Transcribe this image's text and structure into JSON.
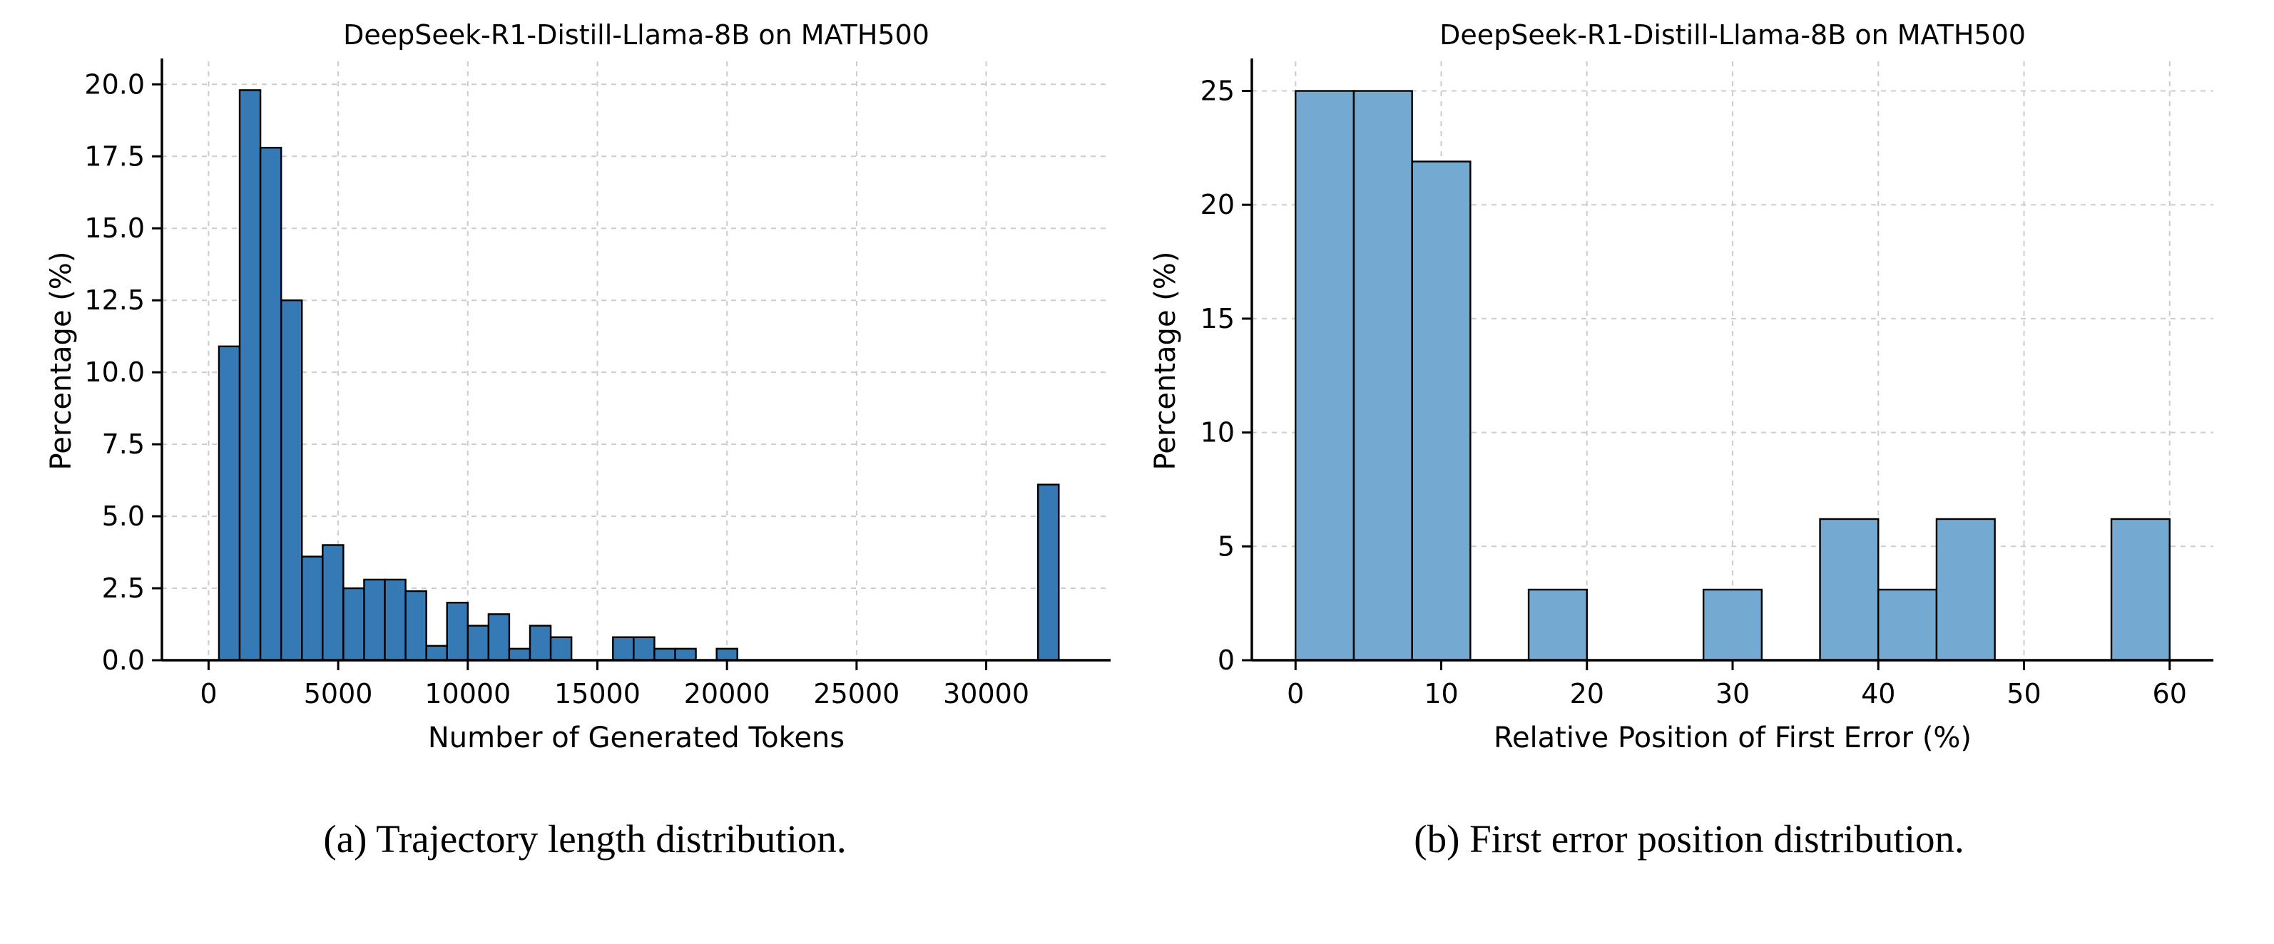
{
  "page": {
    "background": "#ffffff"
  },
  "captions": {
    "a": "(a) Trajectory length distribution.",
    "b": "(b) First error position distribution."
  },
  "chart_data": [
    {
      "id": "chart-a",
      "type": "bar",
      "title": "DeepSeek-R1-Distill-Llama-8B on MATH500",
      "xlabel": "Number of Generated Tokens",
      "ylabel": "Percentage (%)",
      "bar_color": "#3579b5",
      "edge_color": "#000000",
      "grid_color": "#cccccc",
      "grid": true,
      "legend": "none",
      "xlim": [
        -1800,
        34800
      ],
      "ylim": [
        0,
        20.8
      ],
      "xticks": [
        0,
        5000,
        10000,
        15000,
        20000,
        25000,
        30000
      ],
      "xtick_labels": [
        "0",
        "5000",
        "10000",
        "15000",
        "20000",
        "25000",
        "30000"
      ],
      "yticks": [
        0,
        2.5,
        5,
        7.5,
        10,
        12.5,
        15,
        17.5,
        20
      ],
      "ytick_labels": [
        "0.0",
        "2.5",
        "5.0",
        "7.5",
        "10.0",
        "12.5",
        "15.0",
        "17.5",
        "20.0"
      ],
      "bin_width": 800,
      "bars": [
        {
          "x": 400,
          "h": 10.9
        },
        {
          "x": 1200,
          "h": 19.8
        },
        {
          "x": 2000,
          "h": 17.8
        },
        {
          "x": 2800,
          "h": 12.5
        },
        {
          "x": 3600,
          "h": 3.6
        },
        {
          "x": 4400,
          "h": 4.0
        },
        {
          "x": 5200,
          "h": 2.5
        },
        {
          "x": 6000,
          "h": 2.8
        },
        {
          "x": 6800,
          "h": 2.8
        },
        {
          "x": 7600,
          "h": 2.4
        },
        {
          "x": 8400,
          "h": 0.5
        },
        {
          "x": 9200,
          "h": 2.0
        },
        {
          "x": 10000,
          "h": 1.2
        },
        {
          "x": 10800,
          "h": 1.6
        },
        {
          "x": 11600,
          "h": 0.4
        },
        {
          "x": 12400,
          "h": 1.2
        },
        {
          "x": 13200,
          "h": 0.8
        },
        {
          "x": 15600,
          "h": 0.8
        },
        {
          "x": 16400,
          "h": 0.8
        },
        {
          "x": 17200,
          "h": 0.4
        },
        {
          "x": 18000,
          "h": 0.4
        },
        {
          "x": 19600,
          "h": 0.4
        },
        {
          "x": 32000,
          "h": 6.1
        }
      ]
    },
    {
      "id": "chart-b",
      "type": "bar",
      "title": "DeepSeek-R1-Distill-Llama-8B on MATH500",
      "xlabel": "Relative Position of First Error (%)",
      "ylabel": "Percentage (%)",
      "bar_color": "#74a9d1",
      "edge_color": "#000000",
      "grid_color": "#cccccc",
      "grid": true,
      "legend": "none",
      "xlim": [
        -3,
        63
      ],
      "ylim": [
        0,
        26.3
      ],
      "xticks": [
        0,
        10,
        20,
        30,
        40,
        50,
        60
      ],
      "xtick_labels": [
        "0",
        "10",
        "20",
        "30",
        "40",
        "50",
        "60"
      ],
      "yticks": [
        0,
        5,
        10,
        15,
        20,
        25
      ],
      "ytick_labels": [
        "0",
        "5",
        "10",
        "15",
        "20",
        "25"
      ],
      "bin_width": 4,
      "bars": [
        {
          "x": 0,
          "h": 25.0
        },
        {
          "x": 4,
          "h": 25.0
        },
        {
          "x": 8,
          "h": 21.9
        },
        {
          "x": 16,
          "h": 3.1
        },
        {
          "x": 28,
          "h": 3.1
        },
        {
          "x": 36,
          "h": 6.2
        },
        {
          "x": 40,
          "h": 3.1
        },
        {
          "x": 44,
          "h": 6.2
        },
        {
          "x": 56,
          "h": 6.2
        }
      ]
    }
  ]
}
